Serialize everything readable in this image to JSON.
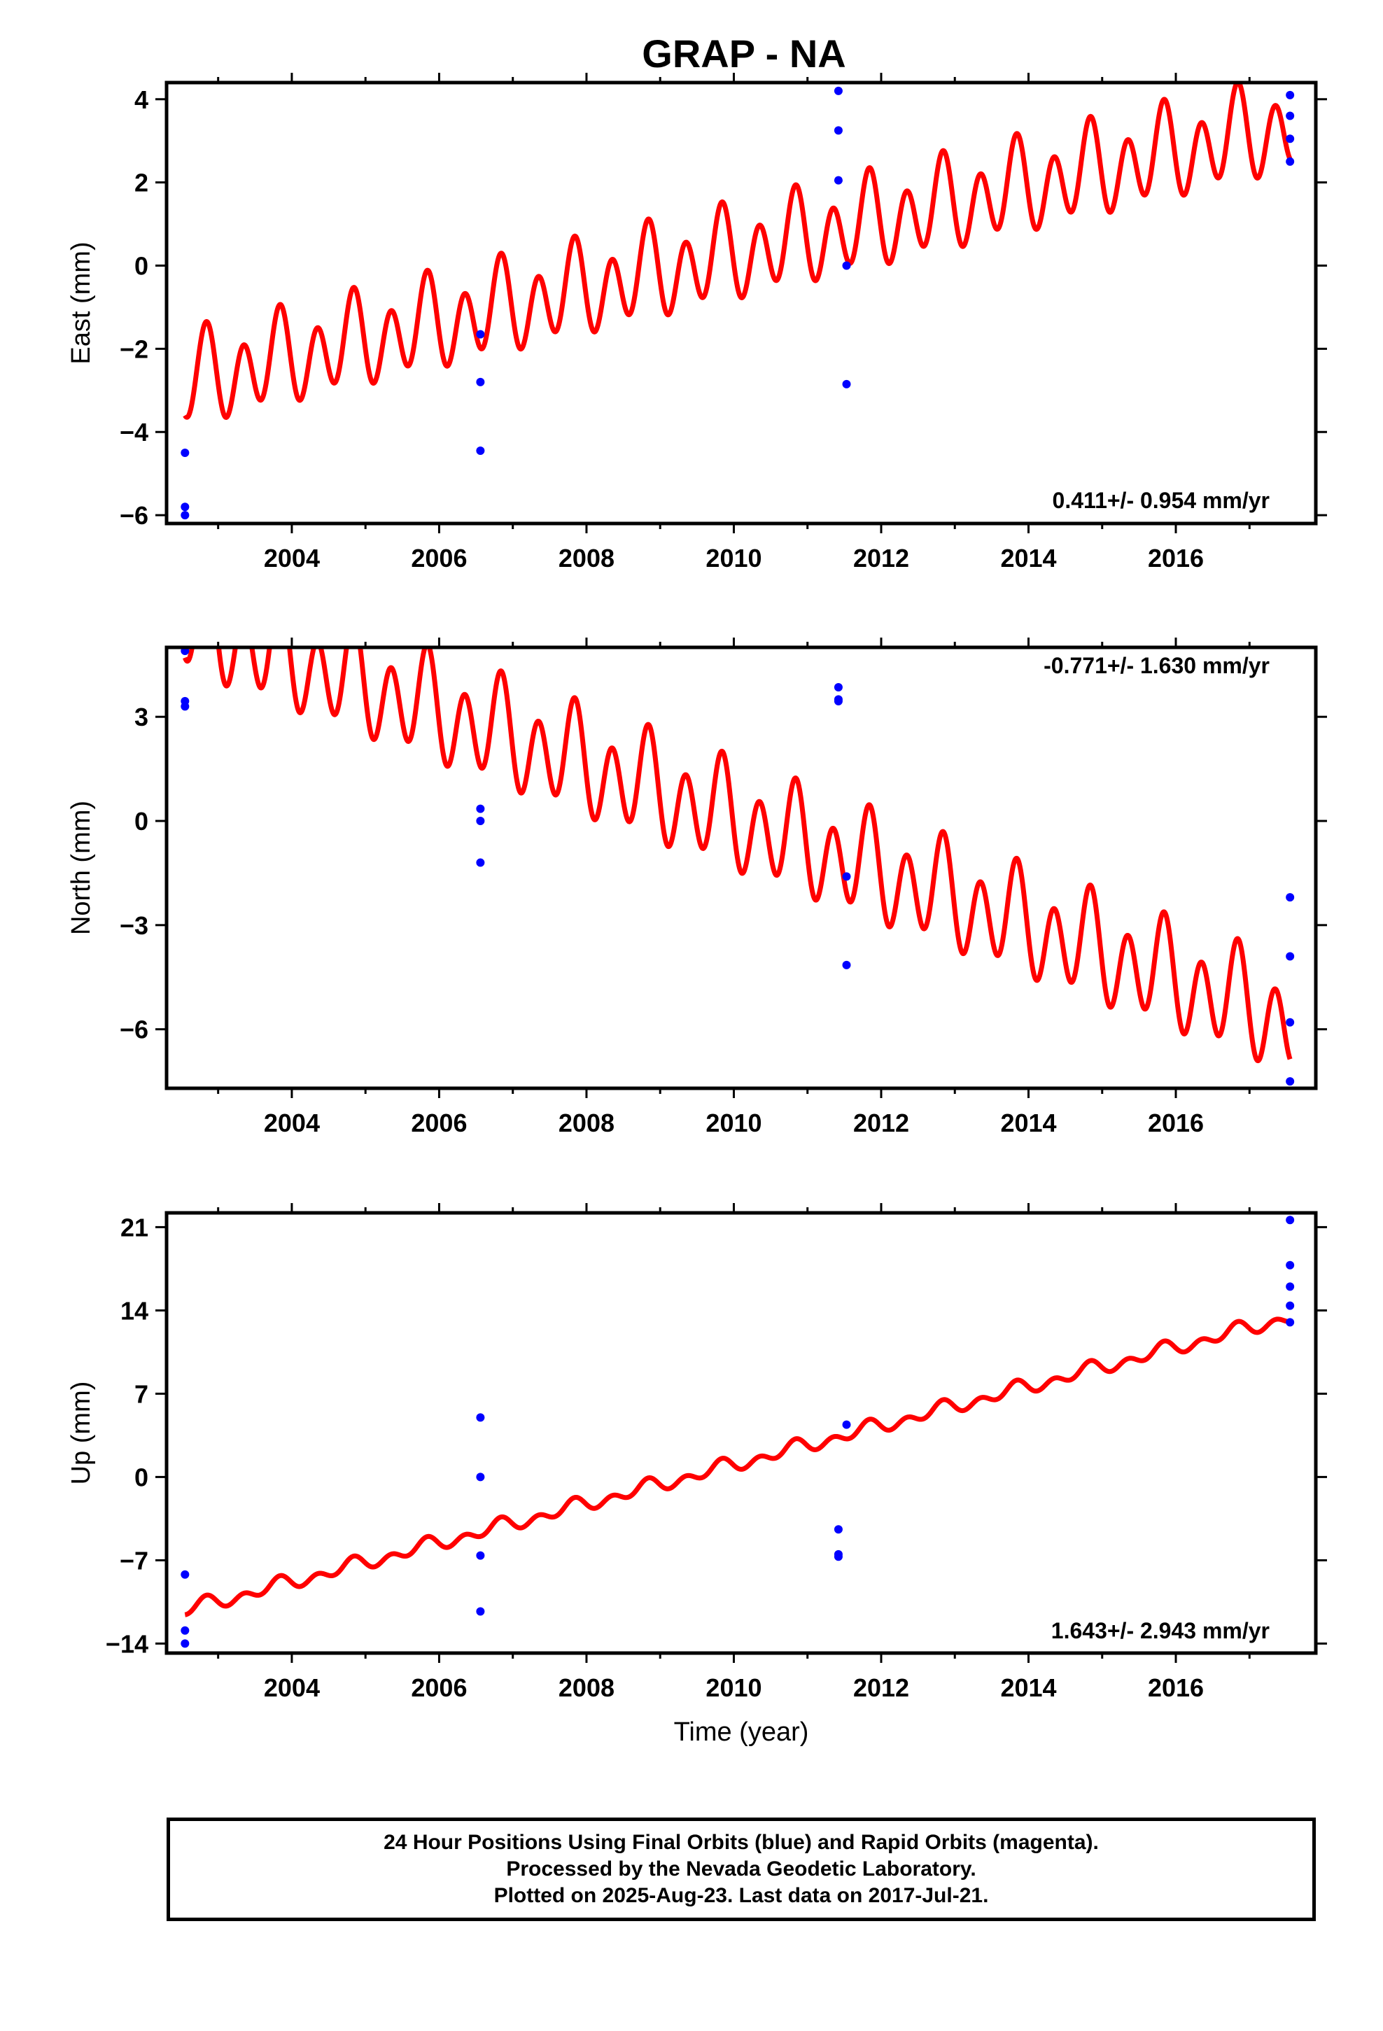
{
  "title": "GRAP - NA",
  "xlabel": "Time (year)",
  "colors": {
    "final": "#0000ff",
    "model": "#ff0000",
    "frame": "#000000"
  },
  "footer": {
    "line1": "24 Hour Positions Using Final Orbits (blue) and Rapid Orbits (magenta).",
    "line2": "Processed by the Nevada Geodetic Laboratory.",
    "line3": "Plotted on 2025-Aug-23. Last data on 2017-Jul-21."
  },
  "chart_data": [
    {
      "type": "scatter",
      "ylabel": "East (mm)",
      "rate": "0.411+/- 0.954 mm/yr",
      "xlim": [
        2002.3,
        2017.9
      ],
      "ylim": [
        -6.2,
        4.4
      ],
      "xticks": [
        2004,
        2006,
        2008,
        2010,
        2012,
        2014,
        2016
      ],
      "yticks": [
        -6,
        -4,
        -2,
        0,
        2,
        4
      ],
      "points": [
        {
          "x": 2002.55,
          "y": -4.5
        },
        {
          "x": 2002.55,
          "y": -5.8
        },
        {
          "x": 2002.55,
          "y": -6.0
        },
        {
          "x": 2006.56,
          "y": -1.65
        },
        {
          "x": 2006.56,
          "y": -2.8
        },
        {
          "x": 2006.56,
          "y": -4.45
        },
        {
          "x": 2011.42,
          "y": 4.2
        },
        {
          "x": 2011.42,
          "y": 3.25
        },
        {
          "x": 2011.42,
          "y": 2.05
        },
        {
          "x": 2011.53,
          "y": 0.0
        },
        {
          "x": 2011.53,
          "y": -2.85
        },
        {
          "x": 2017.55,
          "y": 4.1
        },
        {
          "x": 2017.55,
          "y": 3.6
        },
        {
          "x": 2017.55,
          "y": 3.05
        },
        {
          "x": 2017.55,
          "y": 2.5
        }
      ],
      "model": {
        "x_start": 2002.55,
        "x_end": 2017.55,
        "trend_start": -2.8,
        "trend_slope": 0.411,
        "annual_amp": 0.4,
        "annual_phase": 0.45,
        "semiannual_amp": 0.95,
        "semiannual_phase": 0.28
      }
    },
    {
      "type": "scatter",
      "ylabel": "North (mm)",
      "rate": "-0.771+/- 1.630 mm/yr",
      "xlim": [
        2002.3,
        2017.9
      ],
      "ylim": [
        -7.7,
        5.0
      ],
      "xticks": [
        2004,
        2006,
        2008,
        2010,
        2012,
        2014,
        2016
      ],
      "yticks": [
        -6,
        -3,
        0,
        3
      ],
      "points": [
        {
          "x": 2002.55,
          "y": 4.9
        },
        {
          "x": 2002.55,
          "y": 3.45
        },
        {
          "x": 2002.55,
          "y": 3.3
        },
        {
          "x": 2006.56,
          "y": 0.35
        },
        {
          "x": 2006.56,
          "y": 0.0
        },
        {
          "x": 2006.56,
          "y": -1.2
        },
        {
          "x": 2011.42,
          "y": 3.85
        },
        {
          "x": 2011.42,
          "y": 3.5
        },
        {
          "x": 2011.42,
          "y": 3.45
        },
        {
          "x": 2011.53,
          "y": -1.6
        },
        {
          "x": 2011.53,
          "y": -4.15
        },
        {
          "x": 2017.55,
          "y": -2.2
        },
        {
          "x": 2017.55,
          "y": -3.9
        },
        {
          "x": 2017.55,
          "y": -5.8
        },
        {
          "x": 2017.55,
          "y": -7.5
        }
      ],
      "model": {
        "x_start": 2002.55,
        "x_end": 2017.55,
        "trend_start": 5.8,
        "trend_slope": -0.771,
        "annual_amp": 0.55,
        "annual_phase": 0.45,
        "semiannual_amp": 1.3,
        "semiannual_phase": 0.28
      }
    },
    {
      "type": "scatter",
      "ylabel": "Up (mm)",
      "rate": "1.643+/- 2.943 mm/yr",
      "xlim": [
        2002.3,
        2017.9
      ],
      "ylim": [
        -14.8,
        22.2
      ],
      "xticks": [
        2004,
        2006,
        2008,
        2010,
        2012,
        2014,
        2016
      ],
      "yticks": [
        -14,
        -7,
        0,
        7,
        14,
        21
      ],
      "points": [
        {
          "x": 2002.55,
          "y": -8.2
        },
        {
          "x": 2002.55,
          "y": -12.9
        },
        {
          "x": 2002.55,
          "y": -14.0
        },
        {
          "x": 2006.56,
          "y": 5.0
        },
        {
          "x": 2006.56,
          "y": 0.0
        },
        {
          "x": 2006.56,
          "y": -6.6
        },
        {
          "x": 2006.56,
          "y": -11.3
        },
        {
          "x": 2011.42,
          "y": -4.4
        },
        {
          "x": 2011.42,
          "y": -6.5
        },
        {
          "x": 2011.42,
          "y": -6.7
        },
        {
          "x": 2011.53,
          "y": 4.4
        },
        {
          "x": 2017.55,
          "y": 21.6
        },
        {
          "x": 2017.55,
          "y": 17.8
        },
        {
          "x": 2017.55,
          "y": 16.0
        },
        {
          "x": 2017.55,
          "y": 14.4
        },
        {
          "x": 2017.55,
          "y": 13.0
        }
      ],
      "model": {
        "x_start": 2002.55,
        "x_end": 2017.55,
        "trend_start": -11.2,
        "trend_slope": 1.643,
        "annual_amp": 0.35,
        "annual_phase": 0.45,
        "semiannual_amp": 0.45,
        "semiannual_phase": 0.28
      }
    }
  ]
}
